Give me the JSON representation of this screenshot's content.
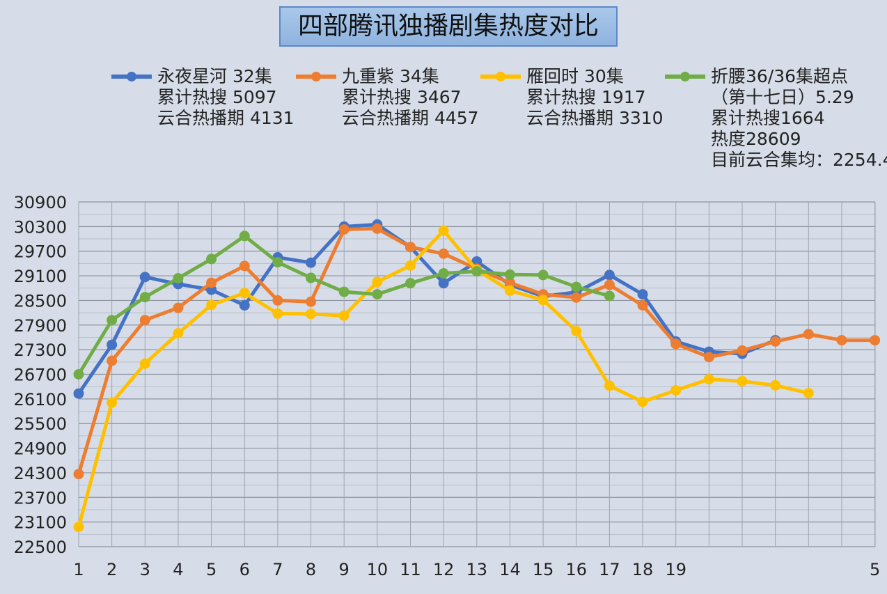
{
  "chart_data": {
    "type": "line",
    "title": "四部腾讯独播剧集热度对比",
    "xlabel": "",
    "ylabel": "",
    "ylim": [
      22500,
      30900
    ],
    "y_ticks": [
      30900,
      30300,
      29700,
      29100,
      28500,
      27900,
      27300,
      26700,
      26100,
      25500,
      24900,
      24300,
      23700,
      23100,
      22500
    ],
    "x": [
      1,
      2,
      3,
      4,
      5,
      6,
      7,
      8,
      9,
      10,
      11,
      12,
      13,
      14,
      15,
      16,
      17,
      18,
      19,
      20,
      21,
      22,
      23,
      24,
      25
    ],
    "x_tick_labels": [
      "1",
      "2",
      "3",
      "4",
      "5",
      "6",
      "7",
      "8",
      "9",
      "10",
      "11",
      "12",
      "13",
      "14",
      "15",
      "16",
      "17",
      "18",
      "19",
      "",
      "",
      "",
      "",
      "",
      "5"
    ],
    "grid": true,
    "legend_position": "top",
    "series": [
      {
        "name": "永夜星河 32集",
        "legend_lines": [
          "永夜星河 32集",
          "累计热搜 5097",
          "云合热播期 4131"
        ],
        "color": "#4472c4",
        "values": [
          26230,
          27420,
          29070,
          28900,
          28760,
          28380,
          29550,
          29420,
          30300,
          30350,
          29800,
          28920,
          29450,
          28880,
          28600,
          28700,
          29120,
          28650,
          27500,
          27250,
          27200,
          27530,
          null,
          null,
          null
        ]
      },
      {
        "name": "九重紫 34集",
        "legend_lines": [
          "九重紫 34集",
          "累计热搜 3467",
          "云合热播期 4457"
        ],
        "color": "#ed7d31",
        "values": [
          24270,
          27030,
          28020,
          28320,
          28930,
          29340,
          28500,
          28470,
          30230,
          30250,
          29800,
          29640,
          29270,
          28930,
          28650,
          28570,
          28880,
          28380,
          27440,
          27120,
          27280,
          27500,
          27680,
          27530,
          27530
        ]
      },
      {
        "name": "雁回时 30集",
        "legend_lines": [
          "雁回时 30集",
          "累计热搜 1917",
          "云合热播期 3310"
        ],
        "color": "#ffc000",
        "values": [
          22980,
          26010,
          26960,
          27700,
          28390,
          28680,
          28180,
          28170,
          28130,
          28950,
          29350,
          30200,
          29240,
          28740,
          28510,
          27750,
          26420,
          26030,
          26310,
          26580,
          26530,
          26430,
          26240,
          null,
          null
        ]
      },
      {
        "name": "折腰36/36集超点",
        "legend_lines": [
          "折腰36/36集超点",
          "（第十七日）5.29",
          "累计热搜1664",
          "热度28609",
          "目前云合集均：2254.4"
        ],
        "color": "#70ad47",
        "values": [
          26700,
          28020,
          28580,
          29040,
          29510,
          30070,
          29430,
          29050,
          28710,
          28650,
          28920,
          29160,
          29210,
          29130,
          29120,
          28830,
          28610,
          null,
          null,
          null,
          null,
          null,
          null,
          null,
          null
        ]
      }
    ]
  }
}
